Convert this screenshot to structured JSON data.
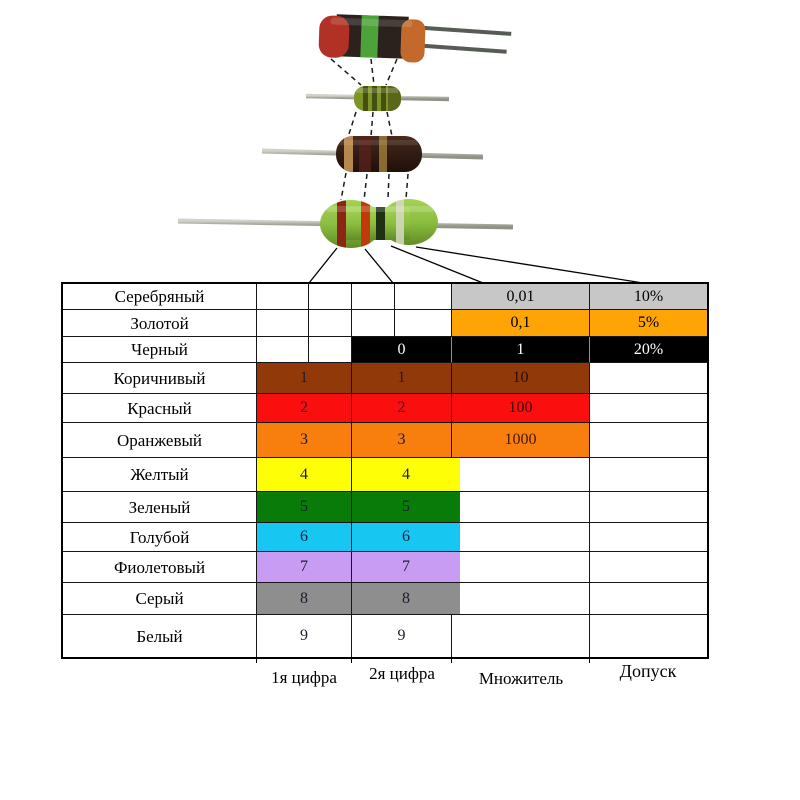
{
  "table": {
    "rows": [
      {
        "name": "Серебряный",
        "cells": [
          {
            "t": ""
          },
          {
            "t": ""
          },
          {
            "t": "0,01",
            "bg": "#C7C7C7",
            "fg": "#000000"
          },
          {
            "t": "10%",
            "bg": "#C7C7C7",
            "fg": "#000000"
          }
        ]
      },
      {
        "name": "Золотой",
        "cells": [
          {
            "t": ""
          },
          {
            "t": ""
          },
          {
            "t": "0,1",
            "bg": "#FFA405",
            "fg": "#000000"
          },
          {
            "t": "5%",
            "bg": "#FFA405",
            "fg": "#000000"
          }
        ]
      },
      {
        "name": "Черный",
        "cells": [
          {
            "t": ""
          },
          {
            "t": "0",
            "bg": "#000000",
            "fg": "#FFFFFF"
          },
          {
            "t": "1",
            "bg": "#000000",
            "fg": "#FFFFFF"
          },
          {
            "t": "20%",
            "bg": "#000000",
            "fg": "#FFFFFF"
          }
        ]
      },
      {
        "name": "Коричнивый",
        "cells": [
          {
            "t": "1",
            "bg": "#92390A"
          },
          {
            "t": "1",
            "bg": "#92390A"
          },
          {
            "t": "10",
            "bg": "#92390A",
            "fg": "#2A0E04"
          },
          {
            "t": ""
          }
        ]
      },
      {
        "name": "Красный",
        "cells": [
          {
            "t": "2",
            "bg": "#FB0E0E"
          },
          {
            "t": "2",
            "bg": "#FB0E0E"
          },
          {
            "t": "100",
            "bg": "#FB0E0E",
            "fg": "#3A0C0C"
          },
          {
            "t": ""
          }
        ]
      },
      {
        "name": "Оранжевый",
        "cells": [
          {
            "t": "3",
            "bg": "#F87E0E"
          },
          {
            "t": "3",
            "bg": "#F87E0E"
          },
          {
            "t": "1000",
            "bg": "#F87E0E",
            "fg": "#47150A"
          },
          {
            "t": ""
          }
        ]
      },
      {
        "name": "Желтый",
        "cells": [
          {
            "t": "4",
            "bg": "#FEFE06"
          },
          {
            "t": "4",
            "bg": "#FEFE06",
            "ov": true
          },
          {
            "t": ""
          },
          {
            "t": ""
          }
        ]
      },
      {
        "name": "Зеленый",
        "cells": [
          {
            "t": "5",
            "bg": "#097B09"
          },
          {
            "t": "5",
            "bg": "#097B09",
            "ov": true
          },
          {
            "t": ""
          },
          {
            "t": ""
          }
        ]
      },
      {
        "name": "Голубой",
        "cells": [
          {
            "t": "6",
            "bg": "#18C6F2"
          },
          {
            "t": "6",
            "bg": "#18C6F2",
            "ov": true
          },
          {
            "t": ""
          },
          {
            "t": ""
          }
        ]
      },
      {
        "name": "Фиолетовый",
        "cells": [
          {
            "t": "7",
            "bg": "#C89CF2"
          },
          {
            "t": "7",
            "bg": "#C89CF2",
            "ov": true
          },
          {
            "t": ""
          },
          {
            "t": ""
          }
        ]
      },
      {
        "name": "Серый",
        "cells": [
          {
            "t": "8",
            "bg": "#8E8E8E"
          },
          {
            "t": "8",
            "bg": "#8E8E8E",
            "ov": true
          },
          {
            "t": ""
          },
          {
            "t": ""
          }
        ]
      },
      {
        "name": "Белый",
        "cells": [
          {
            "t": "9",
            "bg": "#FFFFFF"
          },
          {
            "t": "9",
            "bg": "#FFFFFF"
          },
          {
            "t": ""
          },
          {
            "t": ""
          }
        ]
      }
    ],
    "footer_labels": [
      "1я цифра",
      "2я цифра",
      "Множитель",
      "Допуск"
    ]
  },
  "illustration": {
    "resistors": [
      {
        "icon": "large-axial-resistor-photo",
        "band_colors": [
          "#B13126",
          "#4DA33A",
          "#C2692B"
        ]
      },
      {
        "icon": "small-olive-resistor-photo",
        "band_colors": [
          "#454F10",
          "#454F10",
          "#454F10"
        ]
      },
      {
        "icon": "dark-maroon-resistor-photo",
        "band_colors": [
          "#C49556",
          "#9A7A36"
        ]
      },
      {
        "icon": "green-peanut-resistor-photo",
        "band_colors": [
          "#8C2612",
          "#C03A0E",
          "#1F3110",
          "#D8D8C4"
        ]
      }
    ]
  }
}
